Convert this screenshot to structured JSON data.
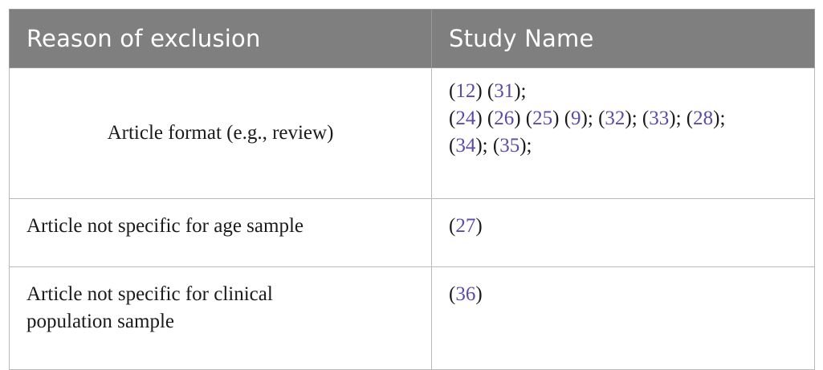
{
  "table": {
    "headers": [
      "Reason of exclusion",
      "Study Name"
    ],
    "rows": [
      {
        "reason": "Article format (e.g., review)",
        "lines": [
          [
            {
              "t": "("
            },
            {
              "r": "12"
            },
            {
              "t": ") ("
            },
            {
              "r": "31"
            },
            {
              "t": ");"
            }
          ],
          [
            {
              "t": "("
            },
            {
              "r": "24"
            },
            {
              "t": ") ("
            },
            {
              "r": "26"
            },
            {
              "t": ") ("
            },
            {
              "r": "25"
            },
            {
              "t": ") ("
            },
            {
              "r": "9"
            },
            {
              "t": "); ("
            },
            {
              "r": "32"
            },
            {
              "t": "); ("
            },
            {
              "r": "33"
            },
            {
              "t": "); ("
            },
            {
              "r": "28"
            },
            {
              "t": ");"
            }
          ],
          [
            {
              "t": "("
            },
            {
              "r": "34"
            },
            {
              "t": "); ("
            },
            {
              "r": "35"
            },
            {
              "t": ");"
            }
          ]
        ]
      },
      {
        "reason": "Article not specific for age sample",
        "lines": [
          [
            {
              "t": "("
            },
            {
              "r": "27"
            },
            {
              "t": ")"
            }
          ]
        ]
      },
      {
        "reason_lines": [
          "Article not specific for clinical",
          "population sample"
        ],
        "lines": [
          [
            {
              "t": "("
            },
            {
              "r": "36"
            },
            {
              "t": ")"
            }
          ]
        ]
      }
    ]
  }
}
